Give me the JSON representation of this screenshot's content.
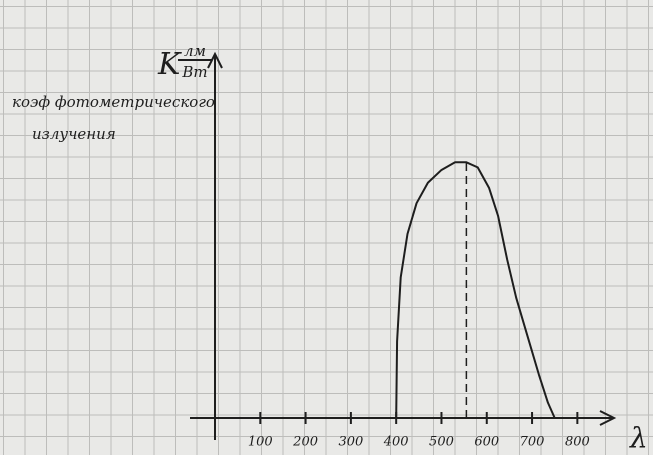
{
  "chart_data": {
    "type": "line",
    "y_label": "K",
    "y_unit_numerator": "лм",
    "y_unit_denominator": "Вт",
    "annotation": [
      "коэф фотометрического",
      "излучения"
    ],
    "x_label": "λ",
    "x": [
      400,
      402,
      410,
      425,
      445,
      470,
      500,
      530,
      555,
      580,
      605,
      625,
      645,
      665,
      690,
      715,
      735,
      750
    ],
    "series": [
      {
        "color": "#1e1e1e",
        "values": [
          0,
          0.3,
          0.55,
          0.72,
          0.84,
          0.92,
          0.97,
          1.0,
          1.0,
          0.98,
          0.9,
          0.79,
          0.62,
          0.47,
          0.32,
          0.17,
          0.06,
          0
        ]
      }
    ],
    "peak_x": 555,
    "xlim": [
      0,
      850
    ],
    "xticks": [
      100,
      200,
      300,
      400,
      500,
      600,
      700,
      800
    ],
    "ylim": [
      0,
      1.4
    ]
  }
}
